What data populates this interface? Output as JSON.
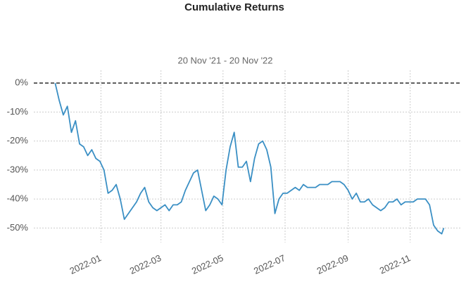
{
  "chart_data": {
    "type": "line",
    "title": "Cumulative Returns",
    "subtitle": "20 Nov '21 - 20 Nov '22",
    "x": [
      "2021-11-17",
      "2021-11-21",
      "2021-11-25",
      "2021-11-29",
      "2021-12-03",
      "2021-12-07",
      "2021-12-11",
      "2021-12-15",
      "2021-12-19",
      "2021-12-23",
      "2021-12-27",
      "2021-12-31",
      "2022-01-04",
      "2022-01-08",
      "2022-01-12",
      "2022-01-16",
      "2022-01-20",
      "2022-01-24",
      "2022-01-28",
      "2022-02-01",
      "2022-02-05",
      "2022-02-09",
      "2022-02-13",
      "2022-02-17",
      "2022-02-21",
      "2022-02-25",
      "2022-03-01",
      "2022-03-05",
      "2022-03-09",
      "2022-03-13",
      "2022-03-17",
      "2022-03-21",
      "2022-03-25",
      "2022-03-29",
      "2022-04-02",
      "2022-04-06",
      "2022-04-10",
      "2022-04-14",
      "2022-04-18",
      "2022-04-22",
      "2022-04-26",
      "2022-04-30",
      "2022-05-04",
      "2022-05-08",
      "2022-05-12",
      "2022-05-16",
      "2022-05-20",
      "2022-05-24",
      "2022-05-28",
      "2022-06-01",
      "2022-06-05",
      "2022-06-09",
      "2022-06-13",
      "2022-06-17",
      "2022-06-21",
      "2022-06-25",
      "2022-06-29",
      "2022-07-03",
      "2022-07-07",
      "2022-07-11",
      "2022-07-15",
      "2022-07-19",
      "2022-07-23",
      "2022-07-27",
      "2022-07-31",
      "2022-08-04",
      "2022-08-08",
      "2022-08-12",
      "2022-08-16",
      "2022-08-20",
      "2022-08-24",
      "2022-08-28",
      "2022-09-01",
      "2022-09-05",
      "2022-09-09",
      "2022-09-13",
      "2022-09-17",
      "2022-09-21",
      "2022-09-25",
      "2022-09-29",
      "2022-10-03",
      "2022-10-07",
      "2022-10-11",
      "2022-10-15",
      "2022-10-19",
      "2022-10-23",
      "2022-10-27",
      "2022-10-31",
      "2022-11-04",
      "2022-11-08",
      "2022-11-12",
      "2022-11-16",
      "2022-11-20",
      "2022-11-24",
      "2022-11-28",
      "2022-12-02",
      "2022-12-04"
    ],
    "series": [
      {
        "name": "Cumulative Returns",
        "color": "#3a8fc4",
        "values": [
          0,
          -6,
          -11,
          -8,
          -17,
          -13,
          -21,
          -22,
          -25,
          -23,
          -26,
          -27,
          -30,
          -38,
          -37,
          -35,
          -40,
          -47,
          -45,
          -43,
          -41,
          -38,
          -36,
          -41,
          -43,
          -44,
          -43,
          -42,
          -44,
          -42,
          -42,
          -41,
          -37,
          -34,
          -31,
          -30,
          -37,
          -44,
          -42,
          -39,
          -40,
          -42,
          -30,
          -22,
          -17,
          -29,
          -29,
          -27,
          -34,
          -26,
          -21,
          -20,
          -23,
          -29,
          -45,
          -40,
          -38,
          -38,
          -37,
          -36,
          -37,
          -35,
          -36,
          -36,
          -36,
          -35,
          -35,
          -35,
          -34,
          -34,
          -34,
          -35,
          -37,
          -40,
          -38,
          -41,
          -41,
          -40,
          -42,
          -43,
          -44,
          -43,
          -41,
          -41,
          -40,
          -42,
          -41,
          -41,
          -41,
          -40,
          -40,
          -40,
          -42,
          -49,
          -51,
          -52,
          -50
        ]
      }
    ],
    "xlim": [
      "2021-10-27",
      "2022-12-21"
    ],
    "xticks": [
      "2022-01",
      "2022-03",
      "2022-05",
      "2022-07",
      "2022-09",
      "2022-11"
    ],
    "ylim": [
      -55,
      4.4
    ],
    "yticks": [
      {
        "value": 0,
        "label": "0%"
      },
      {
        "value": -10,
        "label": "-10%"
      },
      {
        "value": -20,
        "label": "-20%"
      },
      {
        "value": -30,
        "label": "-30%"
      },
      {
        "value": -40,
        "label": "-40%"
      },
      {
        "value": -50,
        "label": "-50%"
      }
    ],
    "grid": true
  }
}
